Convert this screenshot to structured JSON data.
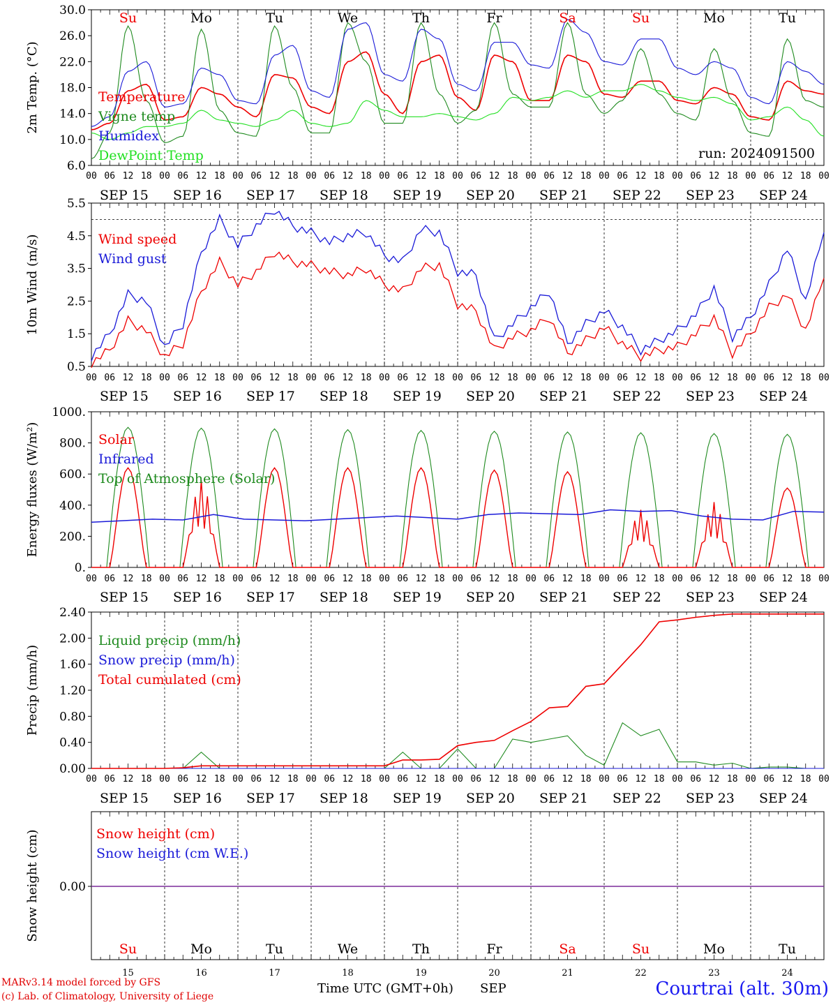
{
  "run_label": "run: 2024091500",
  "footer": {
    "model": "MARv3.14 model forced by GFS",
    "credit": "(c) Lab. of Climatology, University of Liege",
    "time_axis": "Time UTC (GMT+0h)",
    "month": "SEP",
    "station": "Courtrai (alt. 30m)"
  },
  "colors": {
    "red": "#ee0000",
    "green": "#1e8a1e",
    "blue": "#1a1ad8",
    "lightgreen": "#22e022",
    "purple": "#7a2a9a"
  },
  "hour_ticks": [
    "00",
    "06",
    "12",
    "18"
  ],
  "day_names": [
    {
      "label": "Su",
      "color": "red"
    },
    {
      "label": "Mo",
      "color": "black"
    },
    {
      "label": "Tu",
      "color": "black"
    },
    {
      "label": "We",
      "color": "black"
    },
    {
      "label": "Th",
      "color": "black"
    },
    {
      "label": "Fr",
      "color": "black"
    },
    {
      "label": "Sa",
      "color": "red"
    },
    {
      "label": "Su",
      "color": "red"
    },
    {
      "label": "Mo",
      "color": "black"
    },
    {
      "label": "Tu",
      "color": "black"
    }
  ],
  "date_labels": [
    "SEP 15",
    "SEP 16",
    "SEP 17",
    "SEP 18",
    "SEP 19",
    "SEP 20",
    "SEP 21",
    "SEP 22",
    "SEP 23",
    "SEP 24"
  ],
  "day_numbers": [
    "15",
    "16",
    "17",
    "18",
    "19",
    "20",
    "21",
    "22",
    "23",
    "24"
  ],
  "chart_data": [
    {
      "type": "line",
      "ylabel": "2m Temp. (°C)",
      "ylim": [
        6.0,
        30.0
      ],
      "yticks": [
        "6.0",
        "10.0",
        "14.0",
        "18.0",
        "22.0",
        "26.0",
        "30.0"
      ],
      "x_hours": [
        0,
        6,
        12,
        18,
        24,
        30,
        36,
        42,
        48,
        54,
        60,
        66,
        72,
        78,
        84,
        90,
        96,
        102,
        108,
        114,
        120,
        126,
        132,
        138,
        144,
        150,
        156,
        162,
        168,
        174,
        180,
        186,
        192,
        198,
        204,
        210,
        216,
        222,
        228,
        234,
        240
      ],
      "series": [
        {
          "name": "Temperature",
          "color": "red",
          "values": [
            11.5,
            12.5,
            17.5,
            18.5,
            13.0,
            13.5,
            18.0,
            17.0,
            15.0,
            13.5,
            20.0,
            19.5,
            15.0,
            14.0,
            22.0,
            23.5,
            17.0,
            14.0,
            22.0,
            23.0,
            16.5,
            14.5,
            23.0,
            22.0,
            16.0,
            16.0,
            23.0,
            22.0,
            17.0,
            16.5,
            19.0,
            19.0,
            16.0,
            15.5,
            18.0,
            17.0,
            13.5,
            13.0,
            19.0,
            17.5,
            17.0
          ]
        },
        {
          "name": "Vigne temp",
          "color": "green",
          "values": [
            7.0,
            11.0,
            27.5,
            16.0,
            9.5,
            10.5,
            27.0,
            14.5,
            11.0,
            10.5,
            27.5,
            18.0,
            11.0,
            11.0,
            28.0,
            22.0,
            12.5,
            12.5,
            28.0,
            17.0,
            12.5,
            14.5,
            28.0,
            17.0,
            15.0,
            15.0,
            28.0,
            17.0,
            14.0,
            16.0,
            24.0,
            17.0,
            14.0,
            13.0,
            24.0,
            16.0,
            11.0,
            10.5,
            25.5,
            16.0,
            15.0
          ]
        },
        {
          "name": "Humidex",
          "color": "blue",
          "values": [
            12.0,
            13.5,
            20.5,
            22.0,
            15.0,
            15.5,
            21.0,
            20.0,
            16.0,
            15.5,
            23.0,
            24.5,
            17.5,
            16.5,
            27.0,
            28.0,
            20.0,
            19.0,
            27.0,
            25.5,
            18.5,
            17.5,
            25.0,
            25.0,
            21.5,
            21.0,
            28.5,
            26.5,
            22.0,
            21.5,
            25.5,
            25.5,
            21.0,
            20.0,
            22.0,
            21.0,
            16.5,
            15.5,
            22.0,
            20.5,
            18.5
          ]
        },
        {
          "name": "DewPoint Temp",
          "color": "lightgreen",
          "values": [
            11.0,
            10.0,
            11.0,
            12.0,
            12.0,
            12.5,
            14.5,
            13.0,
            12.5,
            12.0,
            13.0,
            14.5,
            12.5,
            12.0,
            12.5,
            16.0,
            14.5,
            13.5,
            13.5,
            14.0,
            13.5,
            13.0,
            14.0,
            16.5,
            16.0,
            16.5,
            17.5,
            16.5,
            17.5,
            17.5,
            18.5,
            17.5,
            16.5,
            16.0,
            16.5,
            15.5,
            13.0,
            13.5,
            15.0,
            13.0,
            10.5
          ]
        }
      ]
    },
    {
      "type": "line",
      "ylabel": "10m Wind (m/s)",
      "ylim": [
        0.5,
        5.5
      ],
      "yticks": [
        "0.5",
        "1.5",
        "2.5",
        "3.5",
        "4.5",
        "5.5"
      ],
      "reference_line": 5.0,
      "x_hours": [
        0,
        6,
        12,
        18,
        24,
        30,
        36,
        42,
        48,
        54,
        60,
        66,
        72,
        78,
        84,
        90,
        96,
        102,
        108,
        114,
        120,
        126,
        132,
        138,
        144,
        150,
        156,
        162,
        168,
        174,
        180,
        186,
        192,
        198,
        204,
        210,
        216,
        222,
        228,
        234,
        240
      ],
      "series": [
        {
          "name": "Wind speed",
          "color": "red",
          "values": [
            0.6,
            1.0,
            1.9,
            1.6,
            0.8,
            1.2,
            2.8,
            3.7,
            3.0,
            3.4,
            4.0,
            3.7,
            3.6,
            3.4,
            3.3,
            3.5,
            3.0,
            2.8,
            3.5,
            3.6,
            2.4,
            2.2,
            1.0,
            1.4,
            1.6,
            2.0,
            0.9,
            1.3,
            1.7,
            1.2,
            0.8,
            1.0,
            1.1,
            1.5,
            2.0,
            0.9,
            1.5,
            2.3,
            2.7,
            1.6,
            3.2
          ]
        },
        {
          "name": "Wind gust",
          "color": "blue",
          "values": [
            0.8,
            1.5,
            2.7,
            2.5,
            1.1,
            1.8,
            4.0,
            5.0,
            4.2,
            4.8,
            5.3,
            4.8,
            4.6,
            4.3,
            4.5,
            4.6,
            3.9,
            3.7,
            4.7,
            4.6,
            3.4,
            3.3,
            1.3,
            1.8,
            2.3,
            2.8,
            1.2,
            1.8,
            2.2,
            1.7,
            1.0,
            1.3,
            1.6,
            2.1,
            2.9,
            1.4,
            2.0,
            3.0,
            4.1,
            2.5,
            4.6
          ]
        }
      ]
    },
    {
      "type": "line",
      "ylabel": "Energy fluxes (W/m²)",
      "ylim": [
        0,
        1000
      ],
      "yticks": [
        "0.",
        "200.",
        "400.",
        "600.",
        "800.",
        "1000."
      ],
      "series": [
        {
          "name": "Solar",
          "color": "red",
          "peaks": [
            640,
            560,
            640,
            640,
            640,
            625,
            615,
            370,
            420,
            510
          ]
        },
        {
          "name": "Infrared",
          "color": "blue",
          "values": [
            290,
            300,
            310,
            305,
            340,
            310,
            305,
            300,
            310,
            320,
            330,
            320,
            310,
            340,
            350,
            345,
            340,
            370,
            360,
            365,
            330,
            310,
            305,
            360,
            355
          ]
        },
        {
          "name": "Top of Atmosphere (Solar)",
          "color": "green",
          "peaks": [
            900,
            895,
            890,
            885,
            880,
            875,
            870,
            865,
            860,
            855
          ]
        }
      ]
    },
    {
      "type": "line",
      "ylabel": "Precip (mm/h)",
      "ylim": [
        0.0,
        2.4
      ],
      "yticks": [
        "0.00",
        "0.40",
        "0.80",
        "1.20",
        "1.60",
        "2.00",
        "2.40"
      ],
      "x_hours": [
        0,
        12,
        24,
        30,
        36,
        42,
        48,
        60,
        72,
        84,
        96,
        102,
        108,
        114,
        120,
        126,
        132,
        138,
        144,
        150,
        156,
        162,
        168,
        174,
        180,
        186,
        192,
        198,
        204,
        210,
        216,
        222,
        228,
        234,
        240
      ],
      "series": [
        {
          "name": "Liquid precip (mm/h)",
          "color": "green",
          "values": [
            0,
            0,
            0,
            0,
            0.25,
            0,
            0,
            0,
            0,
            0,
            0,
            0.25,
            0,
            0,
            0.3,
            0,
            0,
            0.45,
            0.4,
            0.45,
            0.5,
            0.2,
            0.05,
            0.7,
            0.5,
            0.6,
            0.1,
            0.1,
            0.05,
            0.08,
            0,
            0.02,
            0.02,
            0,
            0
          ]
        },
        {
          "name": "Snow precip (mm/h)",
          "color": "blue",
          "values": [
            0,
            0,
            0,
            0,
            0,
            0,
            0,
            0,
            0,
            0,
            0,
            0,
            0,
            0,
            0,
            0,
            0,
            0,
            0,
            0,
            0,
            0,
            0,
            0,
            0,
            0,
            0,
            0,
            0,
            0,
            0,
            0,
            0,
            0,
            0
          ]
        },
        {
          "name": "Total cumulated (cm)",
          "color": "red",
          "values": [
            0,
            0,
            0,
            0.01,
            0.04,
            0.04,
            0.04,
            0.04,
            0.04,
            0.04,
            0.04,
            0.13,
            0.13,
            0.14,
            0.35,
            0.4,
            0.43,
            0.58,
            0.72,
            0.93,
            0.95,
            1.26,
            1.3,
            1.6,
            1.9,
            2.25,
            2.28,
            2.32,
            2.35,
            2.37,
            2.37,
            2.37,
            2.37,
            2.37,
            2.37
          ]
        }
      ]
    },
    {
      "type": "line",
      "ylabel": "Snow height (cm)",
      "yticks": [
        "0.00"
      ],
      "series": [
        {
          "name": "Snow height (cm)",
          "color": "red",
          "values": [
            0,
            0
          ]
        },
        {
          "name": "Snow height (cm W.E.)",
          "color": "blue",
          "values": [
            0,
            0
          ]
        }
      ]
    }
  ]
}
